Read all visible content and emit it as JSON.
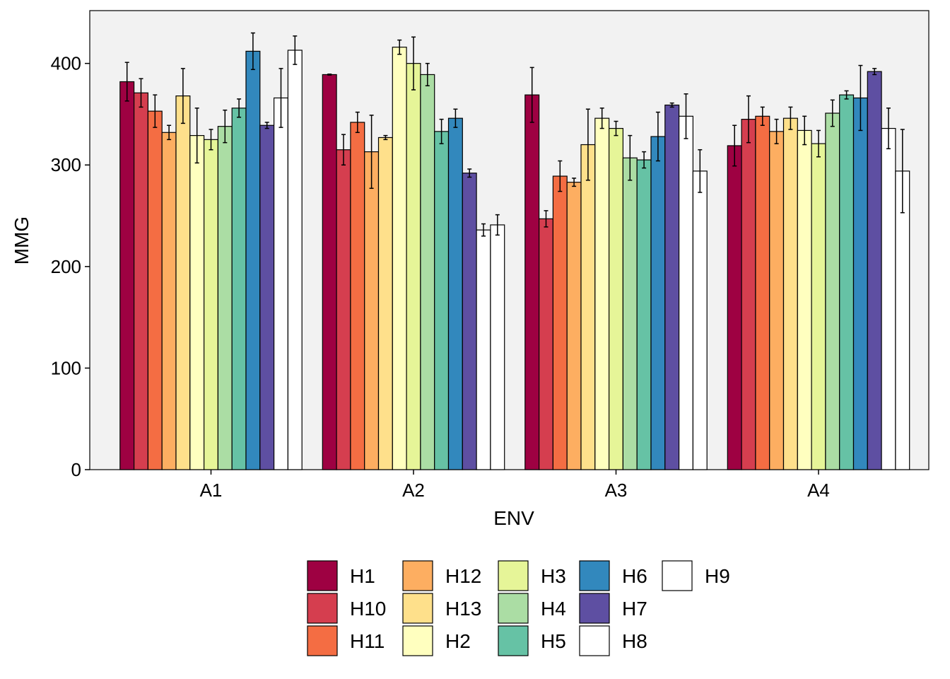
{
  "chart_data": {
    "type": "bar",
    "xlabel": "ENV",
    "ylabel": "MMG",
    "ylim": [
      0,
      452
    ],
    "yticks": [
      0,
      100,
      200,
      300,
      400
    ],
    "categories": [
      "A1",
      "A2",
      "A3",
      "A4"
    ],
    "grid": false,
    "legend_position": "bottom",
    "series": [
      {
        "name": "H1",
        "color": "#9E0142",
        "values": [
          382,
          389,
          369,
          319
        ],
        "errors": [
          19,
          0.5,
          27,
          20
        ]
      },
      {
        "name": "H10",
        "color": "#D53E4F",
        "values": [
          371,
          315,
          247,
          345
        ],
        "errors": [
          14,
          15,
          8,
          23
        ]
      },
      {
        "name": "H11",
        "color": "#F46D43",
        "values": [
          353,
          342,
          289,
          348
        ],
        "errors": [
          16,
          10,
          15,
          9
        ]
      },
      {
        "name": "H12",
        "color": "#FDAE61",
        "values": [
          332,
          313,
          283,
          333
        ],
        "errors": [
          7,
          36,
          4,
          12
        ]
      },
      {
        "name": "H13",
        "color": "#FEE08B",
        "values": [
          368,
          327,
          320,
          346
        ],
        "errors": [
          27,
          2,
          35,
          11
        ]
      },
      {
        "name": "H2",
        "color": "#FFFFBF",
        "values": [
          329,
          416,
          346,
          334
        ],
        "errors": [
          27,
          7,
          10,
          14
        ]
      },
      {
        "name": "H3",
        "color": "#E6F598",
        "values": [
          325,
          400,
          336,
          321
        ],
        "errors": [
          10,
          26,
          7,
          13
        ]
      },
      {
        "name": "H4",
        "color": "#ABDDA4",
        "values": [
          338,
          389,
          307,
          351
        ],
        "errors": [
          16,
          11,
          22,
          13
        ]
      },
      {
        "name": "H5",
        "color": "#66C2A5",
        "values": [
          356,
          333,
          305,
          369
        ],
        "errors": [
          9,
          12,
          8,
          4
        ]
      },
      {
        "name": "H6",
        "color": "#3288BD",
        "values": [
          412,
          346,
          328,
          366
        ],
        "errors": [
          18,
          9,
          24,
          32
        ]
      },
      {
        "name": "H7",
        "color": "#5E4FA2",
        "values": [
          339,
          292,
          359,
          392
        ],
        "errors": [
          3,
          4,
          2,
          3
        ]
      },
      {
        "name": "H8",
        "color": "#FFFFFF",
        "values": [
          366,
          236,
          348,
          336
        ],
        "errors": [
          29,
          6,
          22,
          20
        ]
      },
      {
        "name": "H9",
        "color": "#FFFFFF",
        "values": [
          413,
          241,
          294,
          294
        ],
        "errors": [
          14,
          10,
          21,
          41
        ]
      }
    ]
  },
  "colors": {
    "panel_background": "#F2F2F2",
    "axis_line": "#000000",
    "bar_outline": "#000000"
  }
}
